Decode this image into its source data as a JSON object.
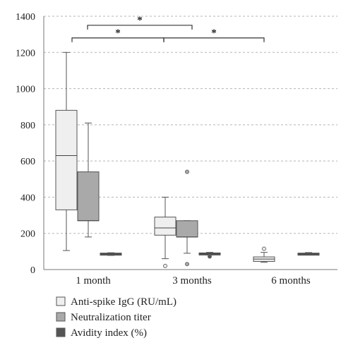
{
  "chart_data": {
    "type": "box",
    "ylim": [
      0,
      1400
    ],
    "yticks": [
      "0",
      "200",
      "400",
      "600",
      "800",
      "1000",
      "1200",
      "1400"
    ],
    "grid": "horizontal-dashed",
    "categories": [
      "1 month",
      "3 months",
      "6 months"
    ],
    "series": [
      {
        "name": "Anti-spike IgG (RU/mL)",
        "color": "#efefef",
        "boxes": [
          {
            "category": "1 month",
            "min": 105,
            "q1": 330,
            "median": 630,
            "q3": 880,
            "max": 1200,
            "outliers": []
          },
          {
            "category": "3 months",
            "min": 60,
            "q1": 190,
            "median": 230,
            "q3": 290,
            "max": 400,
            "outliers": [
              20
            ]
          },
          {
            "category": "6 months",
            "min": 40,
            "q1": 45,
            "median": 58,
            "q3": 70,
            "max": 95,
            "outliers": [
              115
            ]
          }
        ]
      },
      {
        "name": "Neutralization titer",
        "color": "#a9a9a9",
        "boxes": [
          {
            "category": "1 month",
            "min": 180,
            "q1": 270,
            "median": 270,
            "q3": 540,
            "max": 810,
            "outliers": []
          },
          {
            "category": "3 months",
            "min": 90,
            "q1": 180,
            "median": 180,
            "q3": 270,
            "max": 270,
            "outliers": [
              540,
              30
            ]
          }
        ]
      },
      {
        "name": "Avidity index (%)",
        "color": "#555555",
        "boxes": [
          {
            "category": "1 month",
            "min": 78,
            "q1": 84,
            "median": 87,
            "q3": 91,
            "max": 93,
            "outliers": []
          },
          {
            "category": "3 months",
            "min": 80,
            "q1": 85,
            "median": 88,
            "q3": 92,
            "max": 95,
            "outliers": [
              72
            ]
          },
          {
            "category": "6 months",
            "min": 80,
            "q1": 84,
            "median": 87,
            "q3": 91,
            "max": 94,
            "outliers": []
          }
        ]
      }
    ],
    "significance": [
      {
        "from": "1 month",
        "to": "3 months",
        "label": "*",
        "level": 1280
      },
      {
        "from": "1 month",
        "to": "6 months",
        "label": "*",
        "level": 1350
      },
      {
        "from": "3 months",
        "to": "6 months",
        "label": "*",
        "level": 1280
      }
    ]
  }
}
